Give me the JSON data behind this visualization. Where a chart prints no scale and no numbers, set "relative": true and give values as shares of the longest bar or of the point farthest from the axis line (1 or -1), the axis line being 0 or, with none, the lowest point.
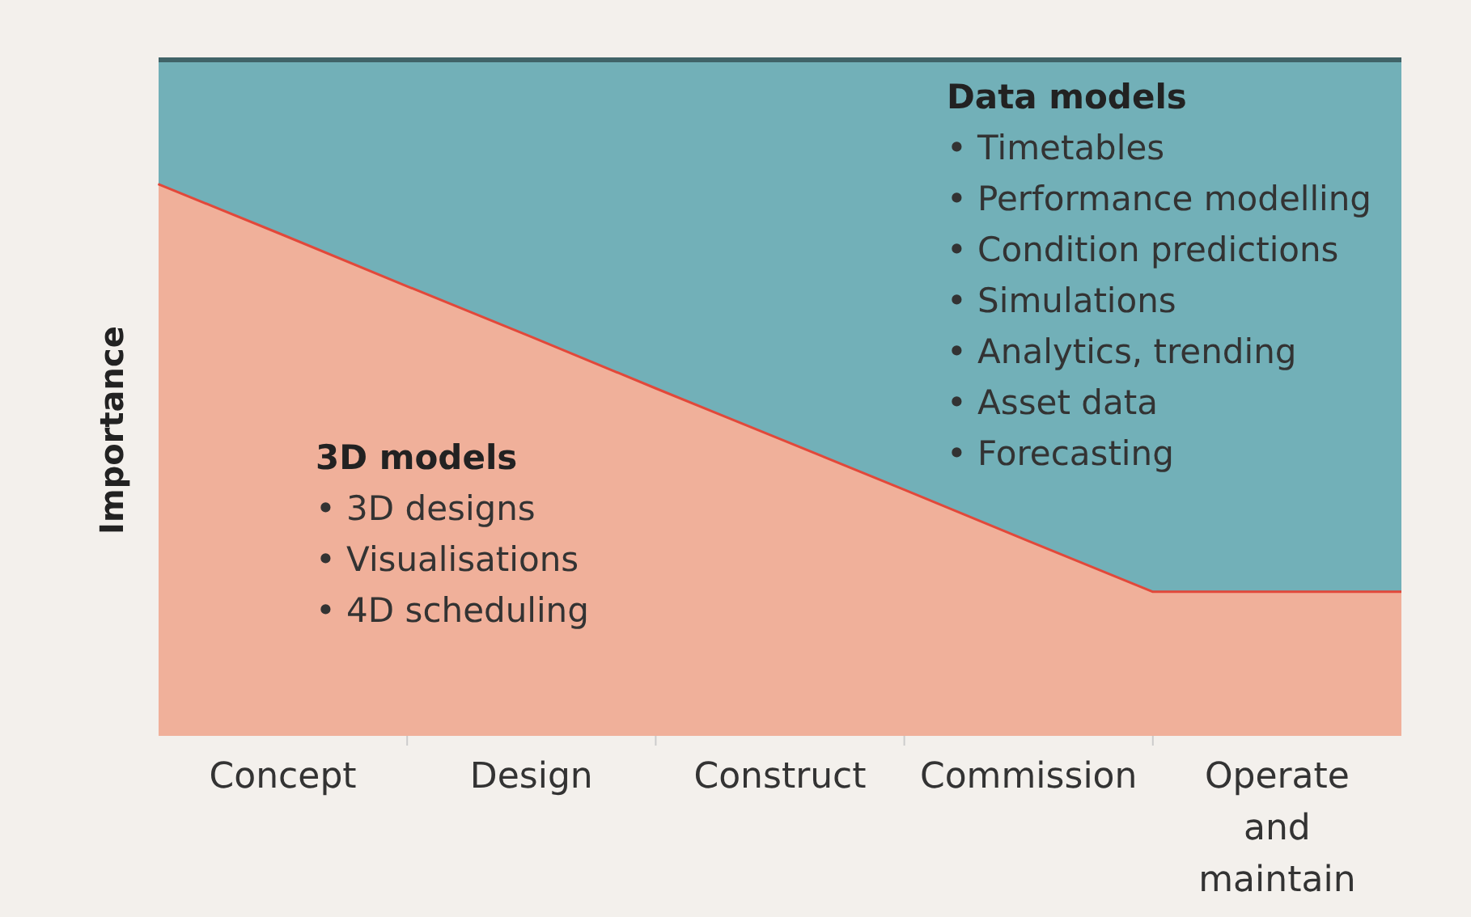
{
  "chart_data": {
    "type": "area",
    "stacked": true,
    "relative": true,
    "ylabel": "Importance",
    "categories": [
      null,
      "Concept",
      null,
      "Design",
      null,
      "Construct",
      null,
      "Commission",
      null,
      "Operate\nand\nmaintain",
      null
    ],
    "series": [
      {
        "color": "#f0b09a",
        "values": [
          0.818,
          0.743,
          0.667,
          0.592,
          0.516,
          0.441,
          0.366,
          0.29,
          0.215,
          0.215,
          0.215
        ]
      },
      {
        "color": "#72b0b8",
        "values": [
          0.182,
          0.257,
          0.333,
          0.408,
          0.484,
          0.559,
          0.634,
          0.71,
          0.785,
          0.785,
          0.785
        ]
      }
    ],
    "annotations": [
      "3D models\n• 3D designs\n• Visualisations\n• 4D scheduling",
      "Data models\n• Timetables\n• Performance modelling\n• Condition predictions\n• Simulations\n• Analytics, trending\n• Asset data\n• Forecasting"
    ]
  }
}
